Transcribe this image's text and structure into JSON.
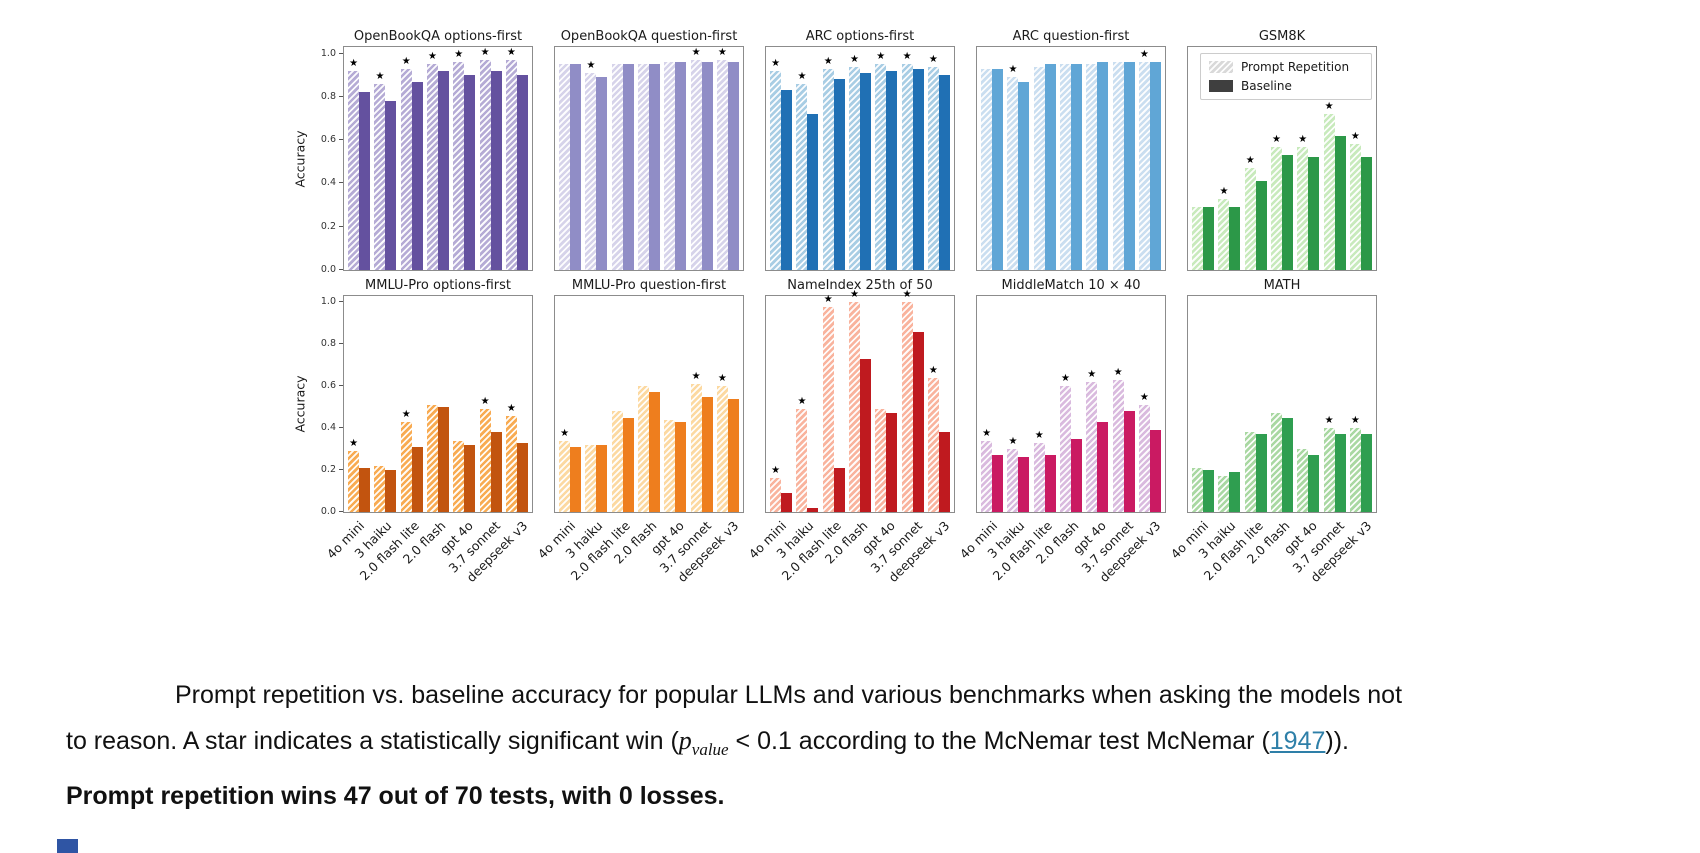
{
  "figure": {
    "ylabel": "Accuracy",
    "categories": [
      "4o mini",
      "3 haiku",
      "2.0 flash lite",
      "2.0 flash",
      "gpt 4o",
      "3.7 sonnet",
      "deepseek v3"
    ],
    "yticks": [
      "1.0",
      "0.8",
      "0.6",
      "0.4",
      "0.2",
      "0.0"
    ],
    "ylim": [
      0,
      1.03
    ],
    "star_symbol": "★",
    "legend_labels": [
      "Prompt Repetition",
      "Baseline"
    ],
    "legend_position": "upper area of GSM8K subplot"
  },
  "chart_data": [
    {
      "type": "bar",
      "title": "OpenBookQA options-first",
      "colors": {
        "prompt_repetition": "#b5abd5",
        "baseline": "#64519f"
      },
      "series": [
        {
          "name": "Prompt Repetition",
          "values": [
            0.92,
            0.86,
            0.93,
            0.95,
            0.96,
            0.97,
            0.97
          ]
        },
        {
          "name": "Baseline",
          "values": [
            0.82,
            0.78,
            0.87,
            0.92,
            0.9,
            0.92,
            0.9
          ]
        }
      ],
      "stars": [
        true,
        true,
        true,
        true,
        true,
        true,
        true
      ]
    },
    {
      "type": "bar",
      "title": "OpenBookQA question-first",
      "colors": {
        "prompt_repetition": "#d6d3ea",
        "baseline": "#908dc6"
      },
      "series": [
        {
          "name": "Prompt Repetition",
          "values": [
            0.95,
            0.91,
            0.95,
            0.95,
            0.96,
            0.97,
            0.97
          ]
        },
        {
          "name": "Baseline",
          "values": [
            0.95,
            0.89,
            0.95,
            0.95,
            0.96,
            0.96,
            0.96
          ]
        }
      ],
      "stars": [
        false,
        true,
        false,
        false,
        false,
        true,
        true
      ]
    },
    {
      "type": "bar",
      "title": "ARC options-first",
      "colors": {
        "prompt_repetition": "#a8cde4",
        "baseline": "#2070b4"
      },
      "series": [
        {
          "name": "Prompt Repetition",
          "values": [
            0.92,
            0.86,
            0.93,
            0.94,
            0.95,
            0.95,
            0.94
          ]
        },
        {
          "name": "Baseline",
          "values": [
            0.83,
            0.72,
            0.88,
            0.91,
            0.92,
            0.93,
            0.9
          ]
        }
      ],
      "stars": [
        true,
        true,
        true,
        true,
        true,
        true,
        true
      ]
    },
    {
      "type": "bar",
      "title": "ARC question-first",
      "colors": {
        "prompt_repetition": "#cadef0",
        "baseline": "#60a6d6"
      },
      "series": [
        {
          "name": "Prompt Repetition",
          "values": [
            0.93,
            0.89,
            0.94,
            0.95,
            0.95,
            0.96,
            0.96
          ]
        },
        {
          "name": "Baseline",
          "values": [
            0.93,
            0.87,
            0.95,
            0.95,
            0.96,
            0.96,
            0.96
          ]
        }
      ],
      "stars": [
        false,
        true,
        false,
        false,
        false,
        false,
        true
      ]
    },
    {
      "type": "bar",
      "title": "GSM8K",
      "colors": {
        "prompt_repetition": "#c8eabc",
        "baseline": "#2c9848"
      },
      "series": [
        {
          "name": "Prompt Repetition",
          "values": [
            0.29,
            0.33,
            0.47,
            0.57,
            0.57,
            0.72,
            0.58
          ]
        },
        {
          "name": "Baseline",
          "values": [
            0.29,
            0.29,
            0.41,
            0.53,
            0.52,
            0.62,
            0.52
          ]
        }
      ],
      "stars": [
        false,
        true,
        true,
        true,
        true,
        true,
        true
      ],
      "legend": [
        "Prompt Repetition",
        "Baseline"
      ]
    },
    {
      "type": "bar",
      "title": "MMLU-Pro options-first",
      "colors": {
        "prompt_repetition": "#f8ab52",
        "baseline": "#c2540f"
      },
      "series": [
        {
          "name": "Prompt Repetition",
          "values": [
            0.29,
            0.22,
            0.43,
            0.51,
            0.34,
            0.49,
            0.46
          ]
        },
        {
          "name": "Baseline",
          "values": [
            0.21,
            0.2,
            0.31,
            0.5,
            0.32,
            0.38,
            0.33
          ]
        }
      ],
      "stars": [
        true,
        false,
        true,
        false,
        false,
        true,
        true
      ]
    },
    {
      "type": "bar",
      "title": "MMLU-Pro question-first",
      "colors": {
        "prompt_repetition": "#fcd9a1",
        "baseline": "#ee7e1e"
      },
      "series": [
        {
          "name": "Prompt Repetition",
          "values": [
            0.34,
            0.32,
            0.48,
            0.6,
            0.44,
            0.61,
            0.6
          ]
        },
        {
          "name": "Baseline",
          "values": [
            0.31,
            0.32,
            0.45,
            0.57,
            0.43,
            0.55,
            0.54
          ]
        }
      ],
      "stars": [
        true,
        false,
        false,
        false,
        false,
        true,
        true
      ]
    },
    {
      "type": "bar",
      "title": "NameIndex 25th of 50",
      "colors": {
        "prompt_repetition": "#f9b39d",
        "baseline": "#bf1a1f"
      },
      "series": [
        {
          "name": "Prompt Repetition",
          "values": [
            0.16,
            0.49,
            0.98,
            1.0,
            0.49,
            1.0,
            0.64
          ]
        },
        {
          "name": "Baseline",
          "values": [
            0.09,
            0.02,
            0.21,
            0.73,
            0.47,
            0.86,
            0.38
          ]
        }
      ],
      "stars": [
        true,
        true,
        true,
        true,
        false,
        true,
        true
      ]
    },
    {
      "type": "bar",
      "title": "MiddleMatch 10 × 40",
      "colors": {
        "prompt_repetition": "#d9bade",
        "baseline": "#ca1a62"
      },
      "series": [
        {
          "name": "Prompt Repetition",
          "values": [
            0.34,
            0.3,
            0.33,
            0.6,
            0.62,
            0.63,
            0.51
          ]
        },
        {
          "name": "Baseline",
          "values": [
            0.27,
            0.26,
            0.27,
            0.35,
            0.43,
            0.48,
            0.39
          ]
        }
      ],
      "stars": [
        true,
        true,
        true,
        true,
        true,
        true,
        true
      ]
    },
    {
      "type": "bar",
      "title": "MATH",
      "colors": {
        "prompt_repetition": "#a9d8a2",
        "baseline": "#2f9e50"
      },
      "series": [
        {
          "name": "Prompt Repetition",
          "values": [
            0.21,
            0.17,
            0.38,
            0.47,
            0.3,
            0.4,
            0.4
          ]
        },
        {
          "name": "Baseline",
          "values": [
            0.2,
            0.19,
            0.37,
            0.45,
            0.27,
            0.37,
            0.37
          ]
        }
      ],
      "stars": [
        false,
        false,
        false,
        false,
        false,
        true,
        true
      ]
    }
  ],
  "caption": {
    "line1": "Prompt repetition vs. baseline accuracy for popular LLMs and various benchmarks when asking the models not",
    "line2_pre": "to reason. A star indicates a statistically significant win (",
    "math_p": "p",
    "math_sub": "value",
    "line2_mid": " < 0.1 according to the McNemar test McNemar (",
    "link_year": "1947",
    "line2_post": ")).",
    "line3_bold": "Prompt repetition wins 47 out of 70 tests, with 0 losses."
  }
}
